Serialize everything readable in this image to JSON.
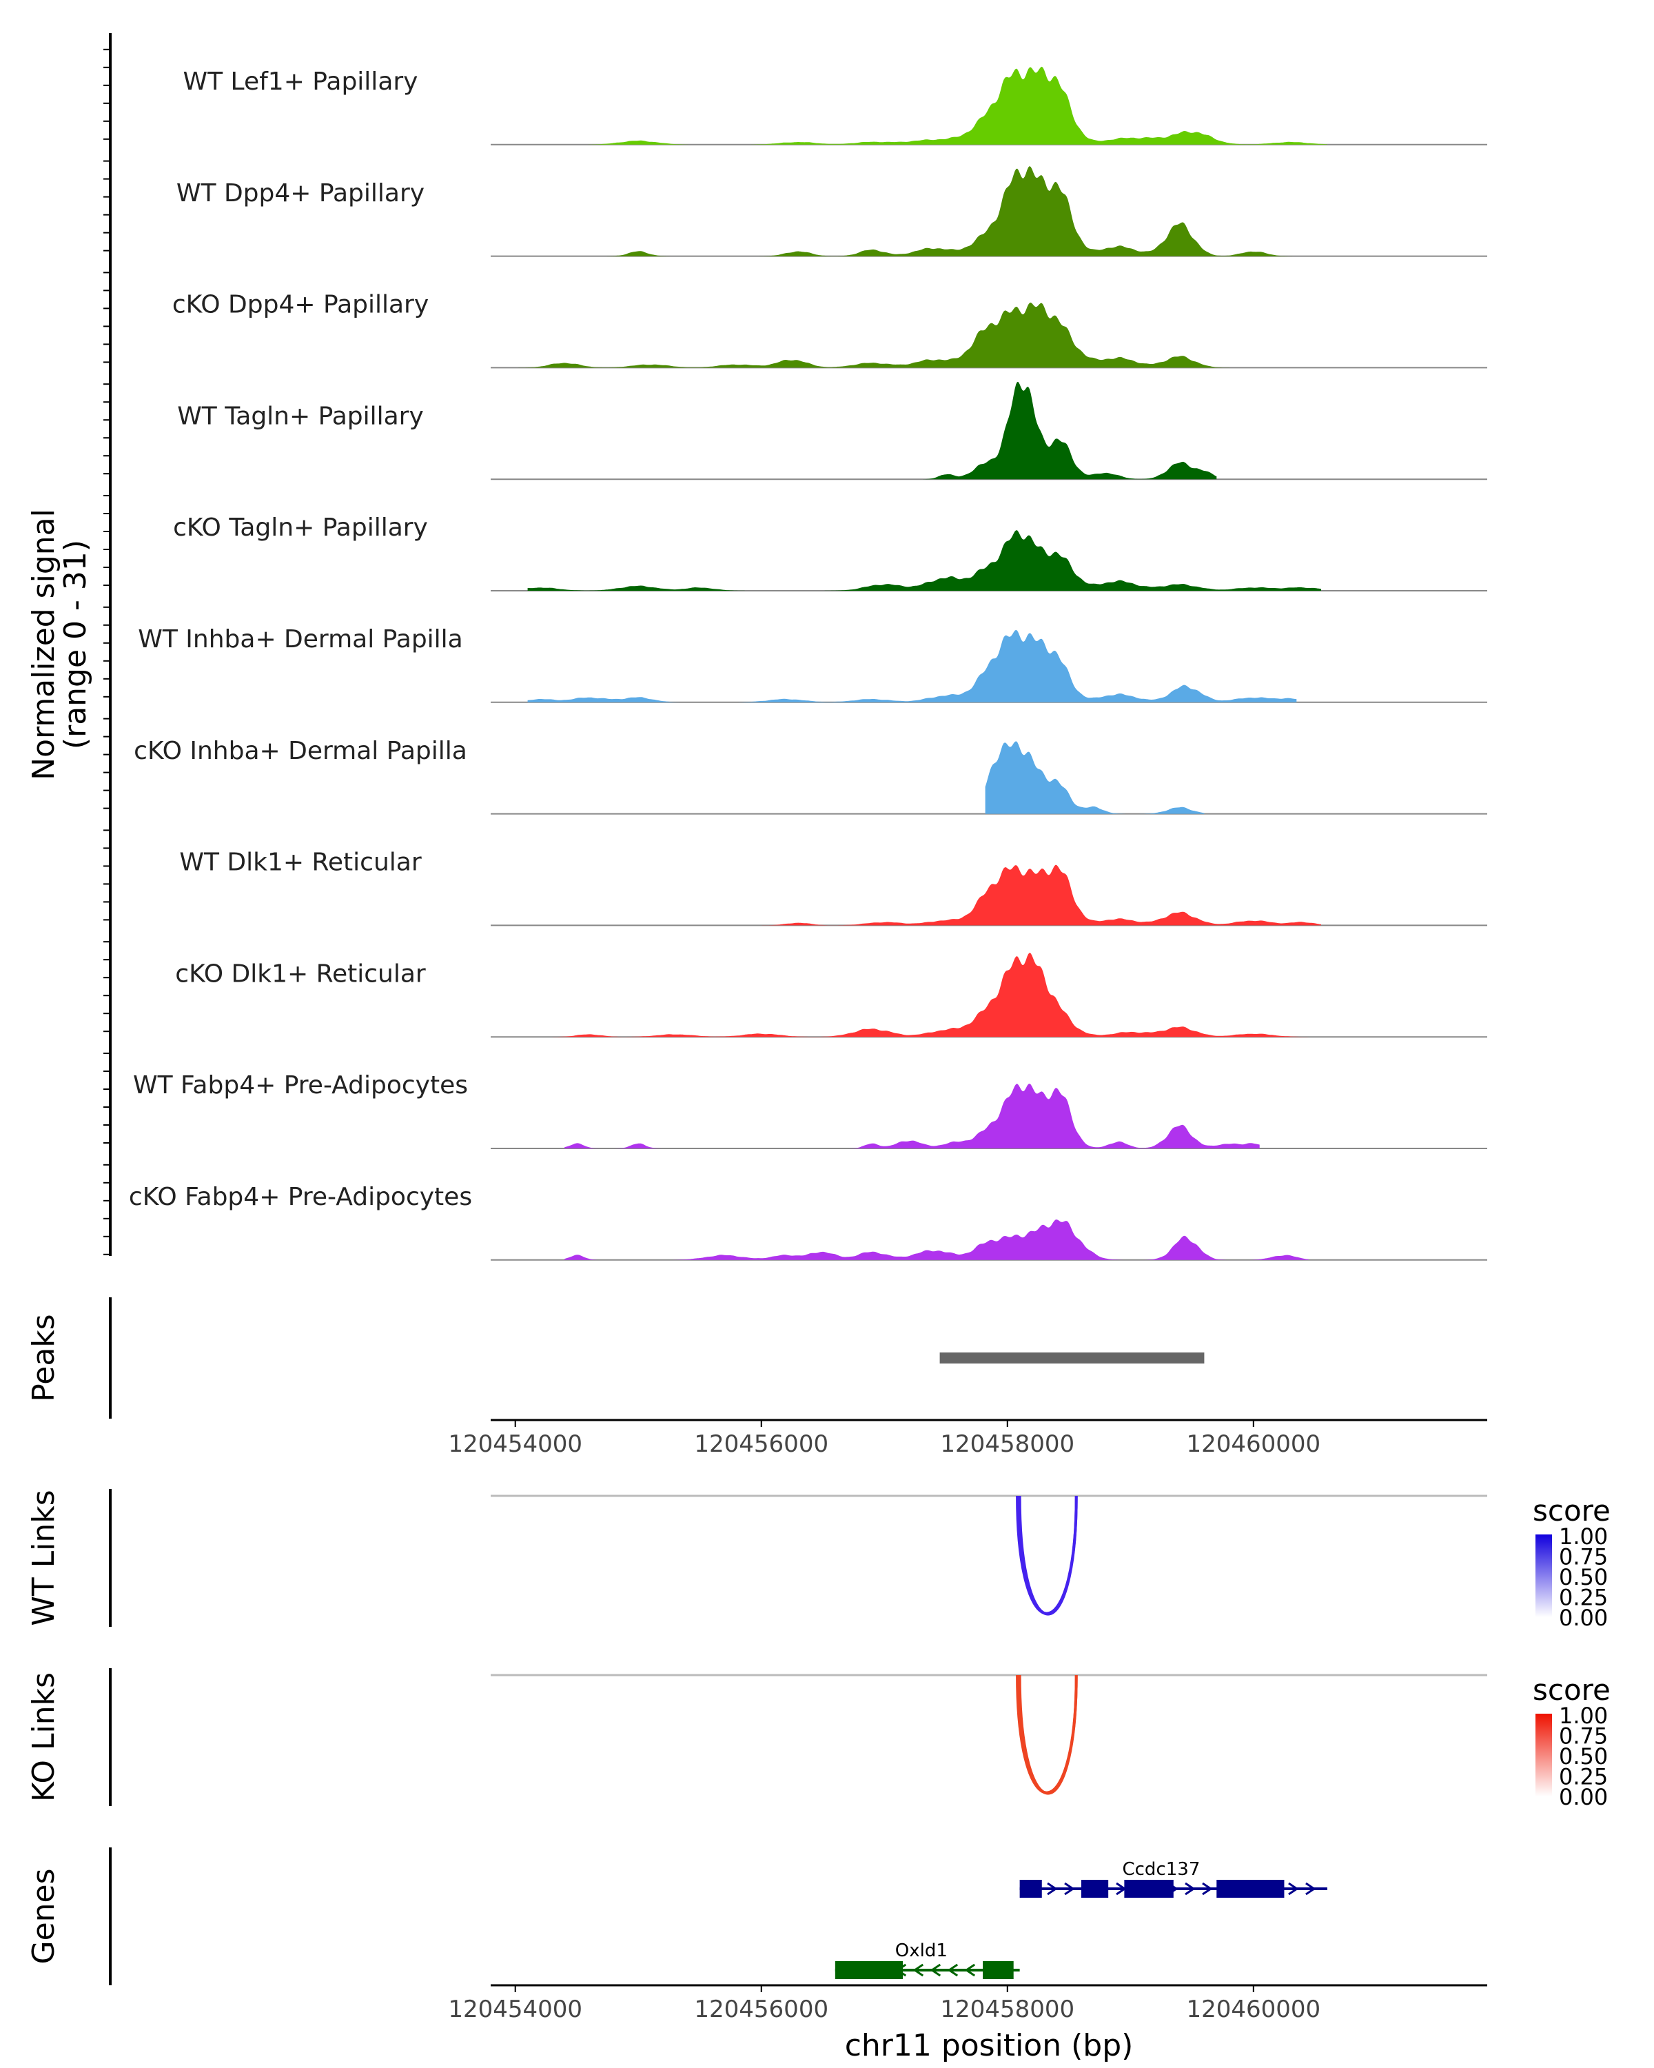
{
  "chart_data": {
    "type": "area",
    "title": "",
    "region": "chr11",
    "xlabel": "chr11 position (bp)",
    "xlim": [
      120453800,
      120461900
    ],
    "x_ticks": [
      120454000,
      120456000,
      120458000,
      120460000
    ],
    "x_tick_labels": [
      "120454000",
      "120456000",
      "120458000",
      "120460000"
    ],
    "coverage": {
      "ylabel": "Normalized signal",
      "ylabel_range": "(range 0 - 31)",
      "ylim": [
        0,
        31
      ],
      "tracks": [
        {
          "name": "WT Lef1+ Papillary",
          "color": "#66CC00",
          "peaks": [
            [
              120458100,
              22,
              180
            ],
            [
              120458400,
              15,
              120
            ],
            [
              120455000,
              1.2,
              150
            ],
            [
              120456300,
              0.8,
              150
            ],
            [
              120456900,
              0.8,
              150
            ],
            [
              120457400,
              1.5,
              200
            ],
            [
              120457800,
              3,
              150
            ],
            [
              120458900,
              1.5,
              150
            ],
            [
              120459150,
              1.5,
              150
            ],
            [
              120459500,
              4,
              150
            ],
            [
              120460300,
              0.8,
              150
            ]
          ],
          "start": 120453800,
          "end": 120460600
        },
        {
          "name": "WT Dpp4+ Papillary",
          "color": "#4C8C00",
          "peaks": [
            [
              120458120,
              27,
              150
            ],
            [
              120458420,
              18,
              110
            ],
            [
              120455000,
              1.5,
              80
            ],
            [
              120456300,
              1.5,
              100
            ],
            [
              120456900,
              2,
              100
            ],
            [
              120457400,
              2.5,
              150
            ],
            [
              120457800,
              4,
              120
            ],
            [
              120458900,
              3,
              150
            ],
            [
              120459400,
              10,
              110
            ],
            [
              120460000,
              1.5,
              100
            ]
          ],
          "start": 120453800,
          "end": 120460600
        },
        {
          "name": "cKO Dpp4+ Papillary",
          "color": "#4C8C00",
          "peaks": [
            [
              120458100,
              17,
              200
            ],
            [
              120458400,
              10,
              150
            ],
            [
              120454400,
              1.5,
              120
            ],
            [
              120455100,
              1,
              150
            ],
            [
              120455800,
              1,
              150
            ],
            [
              120456250,
              2.5,
              120
            ],
            [
              120456900,
              1.5,
              150
            ],
            [
              120457400,
              2.5,
              150
            ],
            [
              120457800,
              6,
              120
            ],
            [
              120458900,
              3,
              150
            ],
            [
              120459400,
              3.5,
              120
            ]
          ],
          "start": 120453800,
          "end": 120460600
        },
        {
          "name": "WT Tagln+ Papillary",
          "color": "#006400",
          "peaks": [
            [
              120458120,
              31,
              100
            ],
            [
              120458420,
              12,
              100
            ],
            [
              120457500,
              1.5,
              60
            ],
            [
              120457850,
              5,
              120
            ],
            [
              120458800,
              2,
              100
            ],
            [
              120459400,
              5,
              100
            ],
            [
              120459600,
              2,
              80
            ]
          ],
          "start": 120457100,
          "end": 120459700
        },
        {
          "name": "cKO Tagln+ Papillary",
          "color": "#006400",
          "peaks": [
            [
              120458100,
              17,
              120
            ],
            [
              120458400,
              11,
              130
            ],
            [
              120454200,
              1,
              150
            ],
            [
              120455000,
              1.5,
              150
            ],
            [
              120455500,
              1,
              120
            ],
            [
              120457000,
              2,
              150
            ],
            [
              120457500,
              4,
              150
            ],
            [
              120457850,
              6,
              120
            ],
            [
              120458900,
              3,
              150
            ],
            [
              120459400,
              2,
              150
            ],
            [
              120460000,
              1,
              150
            ],
            [
              120460400,
              1,
              150
            ]
          ],
          "start": 120454100,
          "end": 120460550
        },
        {
          "name": "WT Inhba+ Dermal Papilla",
          "color": "#5AAAE6",
          "peaks": [
            [
              120458100,
              21,
              180
            ],
            [
              120458400,
              10,
              110
            ],
            [
              120454200,
              1,
              100
            ],
            [
              120454600,
              1.5,
              150
            ],
            [
              120455000,
              1.5,
              120
            ],
            [
              120456200,
              1,
              150
            ],
            [
              120456900,
              1,
              150
            ],
            [
              120457500,
              2,
              150
            ],
            [
              120457850,
              4,
              120
            ],
            [
              120458900,
              2.5,
              150
            ],
            [
              120459450,
              5,
              120
            ],
            [
              120460000,
              1.5,
              150
            ],
            [
              120460300,
              1,
              100
            ]
          ],
          "start": 120454100,
          "end": 120460350
        },
        {
          "name": "cKO Inhba+ Dermal Papilla",
          "color": "#5AAAE6",
          "peaks": [
            [
              120458100,
              21,
              130
            ],
            [
              120458400,
              9,
              100
            ],
            [
              120457900,
              11,
              80
            ],
            [
              120458700,
              2,
              80
            ],
            [
              120459400,
              2,
              100
            ]
          ],
          "start": 120457820,
          "end": 120459600
        },
        {
          "name": "WT Dlk1+ Reticular",
          "color": "#FF3333",
          "peaks": [
            [
              120458100,
              17,
              170
            ],
            [
              120458420,
              15,
              110
            ],
            [
              120456300,
              0.8,
              100
            ],
            [
              120457000,
              1,
              150
            ],
            [
              120457500,
              1.5,
              150
            ],
            [
              120457850,
              6,
              120
            ],
            [
              120458900,
              2,
              150
            ],
            [
              120459400,
              4,
              130
            ],
            [
              120460000,
              1.5,
              150
            ],
            [
              120460400,
              1,
              100
            ]
          ],
          "start": 120456000,
          "end": 120460550
        },
        {
          "name": "cKO Dlk1+ Reticular",
          "color": "#FF3333",
          "peaks": [
            [
              120458120,
              22,
              150
            ],
            [
              120458350,
              8,
              150
            ],
            [
              120454600,
              0.8,
              100
            ],
            [
              120455300,
              0.8,
              150
            ],
            [
              120456000,
              1,
              150
            ],
            [
              120456900,
              2.5,
              150
            ],
            [
              120457500,
              2,
              150
            ],
            [
              120457850,
              6,
              140
            ],
            [
              120459000,
              1.5,
              150
            ],
            [
              120459400,
              3,
              130
            ],
            [
              120460000,
              1,
              150
            ]
          ],
          "start": 120454300,
          "end": 120460550
        },
        {
          "name": "WT Fabp4+ Pre-Adipocytes",
          "color": "#B033EE",
          "peaks": [
            [
              120458120,
              20,
              140
            ],
            [
              120458420,
              16,
              100
            ],
            [
              120454500,
              1.5,
              60
            ],
            [
              120455000,
              1.5,
              60
            ],
            [
              120456900,
              1.5,
              60
            ],
            [
              120457200,
              2.5,
              100
            ],
            [
              120457600,
              2,
              120
            ],
            [
              120457850,
              4,
              100
            ],
            [
              120458900,
              2,
              80
            ],
            [
              120459400,
              7,
              100
            ],
            [
              120459800,
              1.5,
              100
            ],
            [
              120460000,
              1.5,
              60
            ]
          ],
          "start": 120454400,
          "end": 120460050
        },
        {
          "name": "cKO Fabp4+ Pre-Adipocytes",
          "color": "#B033EE",
          "peaks": [
            [
              120458420,
              12,
              150
            ],
            [
              120458100,
              6,
              130
            ],
            [
              120454500,
              1.5,
              60
            ],
            [
              120455700,
              1.5,
              150
            ],
            [
              120456200,
              1.5,
              120
            ],
            [
              120456500,
              2.5,
              100
            ],
            [
              120456900,
              2.5,
              120
            ],
            [
              120457400,
              3,
              150
            ],
            [
              120457850,
              5,
              120
            ],
            [
              120459450,
              7,
              100
            ],
            [
              120460250,
              1.5,
              100
            ]
          ],
          "start": 120454400,
          "end": 120460450
        }
      ]
    },
    "peaks_track": {
      "label": "Peaks",
      "regions": [
        [
          120457450,
          120459600
        ]
      ],
      "color": "#666666"
    },
    "links": [
      {
        "label": "WT Links",
        "color": "#4422EE",
        "legend_title": "score",
        "legend_ticks": [
          "1.00",
          "0.75",
          "0.50",
          "0.25",
          "0.00"
        ],
        "legend_color_high": "#1100DD",
        "legend_color_low": "#FFFFFF",
        "arcs": [
          [
            120458080,
            120458560,
            0.8
          ],
          [
            120458100,
            120458560,
            0.85
          ]
        ]
      },
      {
        "label": "KO Links",
        "color": "#EE4422",
        "legend_title": "score",
        "legend_ticks": [
          "1.00",
          "0.75",
          "0.50",
          "0.25",
          "0.00"
        ],
        "legend_color_high": "#EE1100",
        "legend_color_low": "#FFFFFF",
        "arcs": [
          [
            120458080,
            120458560,
            0.8
          ],
          [
            120458100,
            120458560,
            0.85
          ]
        ]
      }
    ],
    "genes_track": {
      "label": "Genes",
      "genes": [
        {
          "name": "Ccdc137",
          "strand": "+",
          "color": "#00008B",
          "row": 0,
          "start": 120458100,
          "end": 120460600,
          "exons": [
            [
              120458100,
              120458280
            ],
            [
              120458600,
              120458820
            ],
            [
              120458950,
              120459350
            ],
            [
              120459700,
              120460250
            ]
          ]
        },
        {
          "name": "Oxld1",
          "strand": "-",
          "color": "#006400",
          "row": 1,
          "start": 120456600,
          "end": 120458100,
          "exons": [
            [
              120456600,
              120457150
            ],
            [
              120457800,
              120458050
            ]
          ]
        }
      ]
    }
  }
}
